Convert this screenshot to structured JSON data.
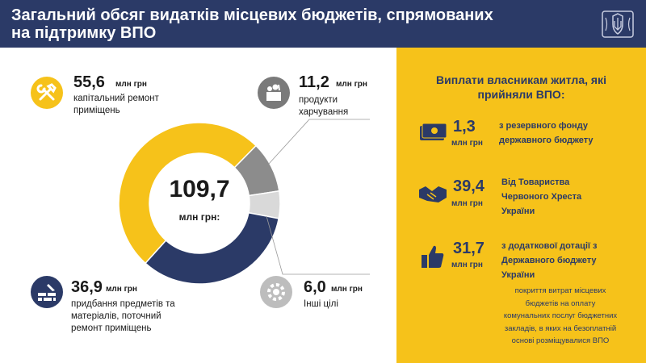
{
  "header": {
    "title_line1": "Загальний обсяг видатків місцевих бюджетів, спрямованих",
    "title_line2": "на підтримку ВПО"
  },
  "colors": {
    "navy": "#2b3a67",
    "yellow": "#f6c21a",
    "gray": "#8c8c8c",
    "light_gray": "#d9d9d9"
  },
  "chart_data": {
    "type": "pie",
    "variant": "donut",
    "total": "109,7",
    "total_unit": "млн грн:",
    "slices": [
      {
        "value": 55.6,
        "label": "55,6",
        "unit": "млн грн",
        "desc_line1": "капітальний ремонт",
        "desc_line2": "приміщень",
        "color": "#f6c21a",
        "icon": "tools-icon"
      },
      {
        "value": 11.2,
        "label": "11,2",
        "unit": "млн грн",
        "desc_line1": "продукти",
        "desc_line2": "харчування",
        "color": "#8c8c8c",
        "icon": "food-basket-icon"
      },
      {
        "value": 6.0,
        "label": "6,0",
        "unit": "млн грн",
        "desc_line1": "Інші цілі",
        "desc_line2": "",
        "color": "#d9d9d9",
        "icon": "gear-icon"
      },
      {
        "value": 36.9,
        "label": "36,9",
        "unit": "млн грн",
        "desc_line1": "придбання предметів та",
        "desc_line2": "матеріалів, поточний",
        "desc_line3": "ремонт приміщень",
        "color": "#2b3a67",
        "icon": "brick-wall-icon"
      }
    ]
  },
  "panel": {
    "title_line1": "Виплати власникам житла, які",
    "title_line2": "прийняли ВПО:",
    "items": [
      {
        "value": "1,3",
        "unit": "млн грн",
        "desc": [
          "з резервного фонду",
          "державного бюджету"
        ],
        "icon": "money-icon"
      },
      {
        "value": "39,4",
        "unit": "млн грн",
        "desc": [
          "Від Товариства",
          "Червоного Хреста",
          "України"
        ],
        "icon": "handshake-icon"
      },
      {
        "value": "31,7",
        "unit": "млн грн",
        "desc": [
          "з додаткової дотації з",
          "Державного бюджету",
          "України"
        ],
        "icon": "thumbs-up-icon"
      }
    ],
    "note": [
      "покриття витрат місцевих",
      "бюджетів на оплату",
      "комунальних послуг бюджетних",
      "закладів, в яких на безоплатній",
      "основі розміщувалися ВПО"
    ]
  }
}
